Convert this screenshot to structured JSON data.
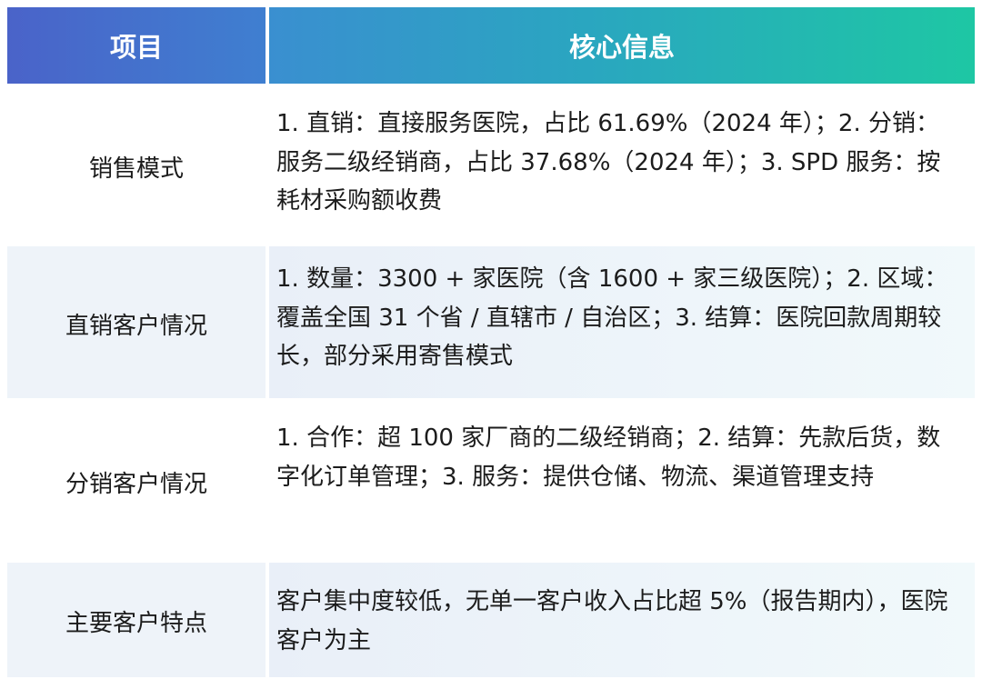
{
  "header": {
    "col1": "项目",
    "col2": "核心信息"
  },
  "rows": [
    {
      "label": "销售模式",
      "content": "1. 直销：直接服务医院，占比 61.69%（2024 年）；2. 分销：服务二级经销商，占比 37.68%（2024 年）；3. SPD 服务：按耗材采购额收费"
    },
    {
      "label": "直销客户情况",
      "content": "1. 数量：3300 + 家医院（含 1600 + 家三级医院）；2. 区域：覆盖全国 31 个省 / 直辖市 / 自治区；3. 结算：医院回款周期较长，部分采用寄售模式"
    },
    {
      "label": "分销客户情况",
      "content": "1. 合作：超 100 家厂商的二级经销商；2. 结算：先款后货，数字化订单管理；3. 服务：提供仓储、物流、渠道管理支持"
    },
    {
      "label": "主要客户特点",
      "content": "客户集中度较低，无单一客户收入占比超 5%（报告期内），医院客户为主"
    }
  ]
}
